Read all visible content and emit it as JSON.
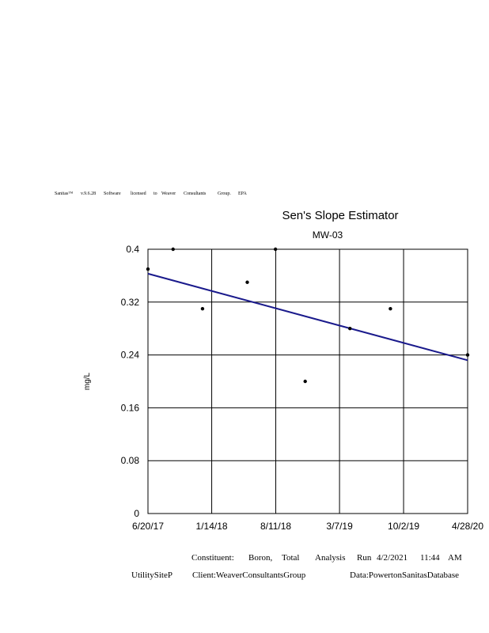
{
  "license_line": [
    "Sanitas™",
    "v.9.6.28",
    "Software",
    "licensed",
    "to",
    "Weaver",
    "Consultants",
    "Group.",
    "EPA"
  ],
  "footer": {
    "constituent_label": "Constituent:",
    "constituent_words": [
      "Boron,",
      "Total"
    ],
    "analysis_label": "Analysis",
    "run_label": "Run",
    "run_date": "4/2/2021",
    "run_time": "11:44",
    "run_ampm": "AM",
    "site": "UtilitySiteP",
    "client": "Client:WeaverConsultantsGroup",
    "data": "Data:PowertonSanitasDatabase"
  },
  "chart_data": {
    "type": "scatter",
    "title": "Sen's Slope Estimator",
    "subtitle": "MW-03",
    "ylabel": "mg/L",
    "xlabel": "",
    "ylim": [
      0,
      0.4
    ],
    "yticks": [
      0,
      0.08,
      0.16,
      0.24,
      0.32,
      0.4
    ],
    "ytick_labels": [
      "0",
      "0.08",
      "0.16",
      "0.24",
      "0.32",
      "0.4"
    ],
    "xlim": [
      "2017-06-20",
      "2020-04-28"
    ],
    "xticks": [
      "2017-06-20",
      "2018-01-14",
      "2018-08-11",
      "2019-03-07",
      "2019-10-02",
      "2020-04-28"
    ],
    "xtick_labels": [
      "6/20/17",
      "1/14/18",
      "8/11/18",
      "3/7/19",
      "10/2/19",
      "4/28/20"
    ],
    "grid": true,
    "points_color": "#000000",
    "trend_color": "#1a1a8c",
    "points": [
      {
        "x": "2017-06-20",
        "y": 0.37
      },
      {
        "x": "2017-09-10",
        "y": 0.4
      },
      {
        "x": "2017-12-15",
        "y": 0.31
      },
      {
        "x": "2018-05-10",
        "y": 0.35
      },
      {
        "x": "2018-08-10",
        "y": 0.4
      },
      {
        "x": "2018-11-15",
        "y": 0.2
      },
      {
        "x": "2019-04-10",
        "y": 0.28
      },
      {
        "x": "2019-08-20",
        "y": 0.31
      },
      {
        "x": "2020-04-28",
        "y": 0.24
      }
    ],
    "trend": [
      {
        "x": "2017-06-20",
        "y": 0.363
      },
      {
        "x": "2020-04-28",
        "y": 0.232
      }
    ]
  }
}
